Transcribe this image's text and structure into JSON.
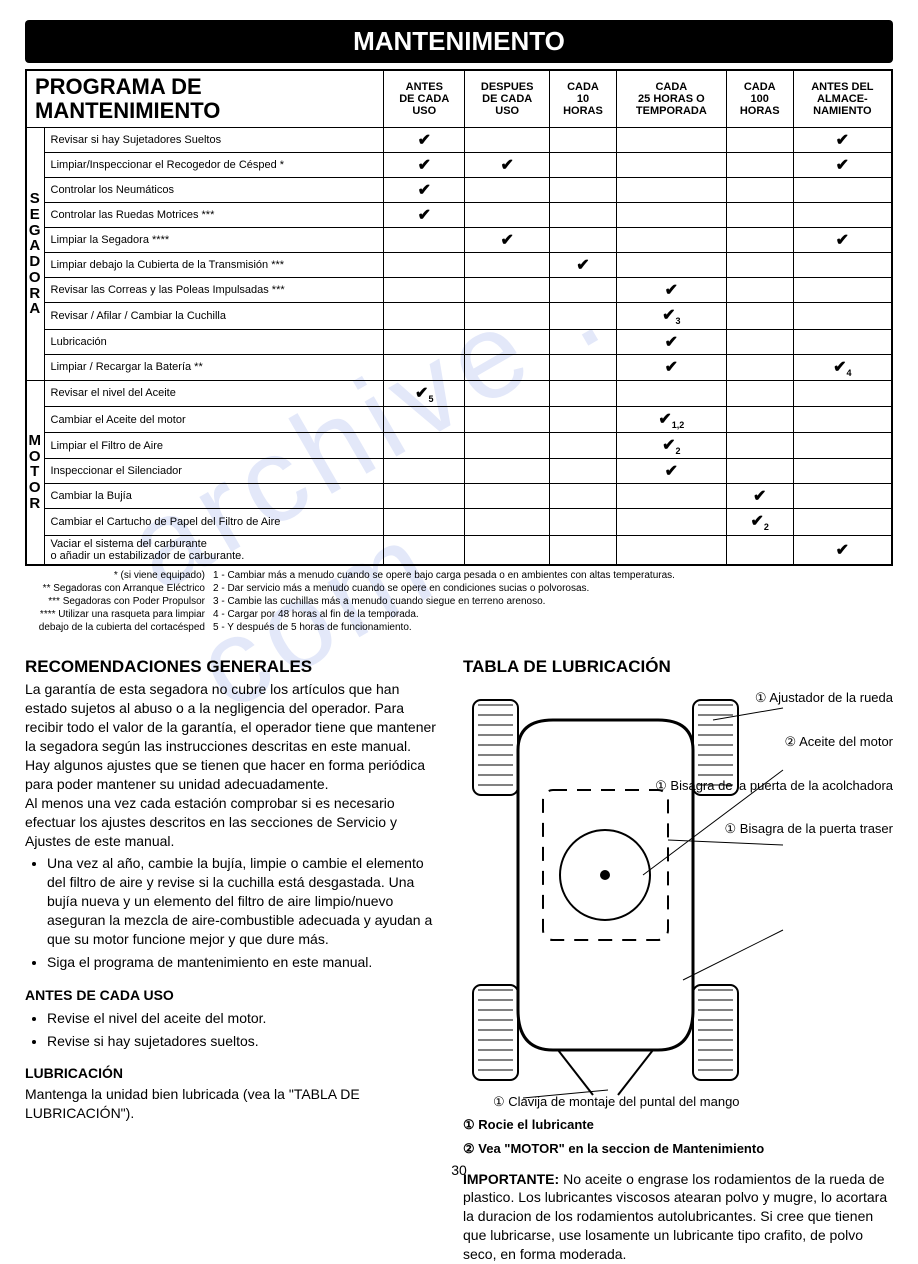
{
  "banner": "MANTENIMENTO",
  "tableTitle": "PROGRAMA DE\nMANTENIMIENTO",
  "watermark": "archive . com",
  "columns": [
    "ANTES\nDE CADA\nUSO",
    "DESPUES\nDE CADA\nUSO",
    "CADA\n10\nHORAS",
    "CADA\n25 HORAS O\nTEMPORADA",
    "CADA\n100\nHORAS",
    "ANTES DEL\nALMACE-\nNAMIENTO"
  ],
  "sections": [
    {
      "label": "SEGADORA",
      "rows": [
        {
          "task": "Revisar si hay Sujetadores Sueltos",
          "marks": [
            "✔",
            "",
            "",
            "",
            "",
            "✔"
          ]
        },
        {
          "task": "Limpiar/Inspeccionar el Recogedor de Césped *",
          "marks": [
            "✔",
            "✔",
            "",
            "",
            "",
            "✔"
          ]
        },
        {
          "task": "Controlar los Neumáticos",
          "marks": [
            "✔",
            "",
            "",
            "",
            "",
            ""
          ]
        },
        {
          "task": "Controlar las Ruedas Motrices ***",
          "marks": [
            "✔",
            "",
            "",
            "",
            "",
            ""
          ]
        },
        {
          "task": "Limpiar la Segadora ****",
          "marks": [
            "",
            "✔",
            "",
            "",
            "",
            "✔"
          ]
        },
        {
          "task": "Limpiar debajo la Cubierta de la Transmisión ***",
          "marks": [
            "",
            "",
            "✔",
            "",
            "",
            ""
          ]
        },
        {
          "task": "Revisar las Correas y las Poleas Impulsadas ***",
          "marks": [
            "",
            "",
            "",
            "✔",
            "",
            ""
          ]
        },
        {
          "task": "Revisar / Afilar / Cambiar la Cuchilla",
          "marks": [
            "",
            "",
            "",
            "✔3",
            "",
            ""
          ]
        },
        {
          "task": "Lubricación",
          "marks": [
            "",
            "",
            "",
            "✔",
            "",
            ""
          ]
        },
        {
          "task": "Limpiar / Recargar la Batería **",
          "marks": [
            "",
            "",
            "",
            "✔",
            "",
            "✔4"
          ]
        }
      ]
    },
    {
      "label": "MOTOR",
      "rows": [
        {
          "task": "Revisar el nivel del Aceite",
          "marks": [
            "✔5",
            "",
            "",
            "",
            "",
            ""
          ]
        },
        {
          "task": "Cambiar el Aceite del motor",
          "marks": [
            "",
            "",
            "",
            "✔1,2",
            "",
            ""
          ]
        },
        {
          "task": "Limpiar el Filtro de Aire",
          "marks": [
            "",
            "",
            "",
            "✔2",
            "",
            ""
          ]
        },
        {
          "task": "Inspeccionar el Silenciador",
          "marks": [
            "",
            "",
            "",
            "✔",
            "",
            ""
          ]
        },
        {
          "task": "Cambiar la Bujía",
          "marks": [
            "",
            "",
            "",
            "",
            "✔",
            ""
          ]
        },
        {
          "task": "Cambiar el Cartucho de Papel del Filtro de Aire",
          "marks": [
            "",
            "",
            "",
            "",
            "✔2",
            ""
          ]
        },
        {
          "task": "Vaciar el sistema del carburante\no añadir un estabilizador de carburante.",
          "marks": [
            "",
            "",
            "",
            "",
            "",
            "✔"
          ]
        }
      ]
    }
  ],
  "footnotesLeft": [
    "* (si viene equipado)",
    "** Segadoras con Arranque Eléctrico",
    "*** Segadoras con Poder Propulsor",
    "**** Utilizar una rasqueta para limpiar",
    "debajo de la cubierta del cortacésped"
  ],
  "footnotesRight": [
    "1 - Cambiar más a menudo cuando se opere bajo carga pesada o en ambientes con altas temperaturas.",
    "2 - Dar servicio más a menudo cuando se opere en condiciones sucias o polvorosas.",
    "3 - Cambie las cuchillas más a menudo cuando siegue en terreno arenoso.",
    "4 - Cargar por 48 horas al fin de la temporada.",
    "5 - Y después de 5 horas de funcionamiento."
  ],
  "leftCol": {
    "h1": "RECOMENDACIONES GENERALES",
    "p1": "La garantía de esta segadora no cubre los artículos que han estado sujetos al abuso o a la negligencia del operador. Para recibir todo el valor de la garantía, el operador tiene que mantener la segadora según las instrucciones descritas en este manual.",
    "p2": "Hay algunos ajustes que se tienen que hacer en forma periódica para poder mantener su unidad adecuadamente.",
    "p3": "Al menos una vez cada estación comprobar si es necesario efectuar los ajustes descritos en las secciones de Servicio y Ajustes de este manual.",
    "li1": "Una vez al año, cambie la bujía, limpie o cambie el elemento del filtro de aire y revise si la cuchilla está desgastada. Una bujía nueva y un elemento del filtro de aire limpio/nuevo aseguran la mezcla de aire-combustible adecuada y ayudan a que su motor funcione mejor y que dure más.",
    "li2": "Siga el programa de mantenimiento en este manual.",
    "h2": "ANTES DE CADA USO",
    "li3": "Revise el nivel del aceite del motor.",
    "li4": "Revise si hay sujetadores sueltos.",
    "h3": "LUBRICACIÓN",
    "p4": "Mantenga la unidad bien lubricada (vea la \"TABLA DE LUBRICACIÓN\")."
  },
  "rightCol": {
    "h1": "TABLA DE LUBRICACIÓN",
    "labels": [
      "① Ajustador de la rueda",
      "② Aceite del motor",
      "① Bisagra de la puerta de la acolchadora",
      "① Bisagra de la puerta traser"
    ],
    "bottomLabel": "① Clavija de montaje del puntal del mango",
    "legend1": "① Rocie el lubricante",
    "legend2": "② Vea \"MOTOR\" en la seccion de Mantenimiento",
    "important": "IMPORTANTE: No aceite o engrase los rodamientos de la rueda de plastico. Los lubricantes viscosos atearan polvo y mugre, lo acortara la duracion de los rodamientos autolubricantes. Si cree que tienen que lubricarse, use losamente un lubricante tipo crafito, de polvo seco, en forma moderada."
  },
  "pageNum": "30",
  "style": {
    "bannerBg": "#000000",
    "bannerFg": "#ffffff",
    "watermarkColor": "rgba(100,130,220,0.18)",
    "bodyFont": "Arial, Helvetica, sans-serif"
  }
}
